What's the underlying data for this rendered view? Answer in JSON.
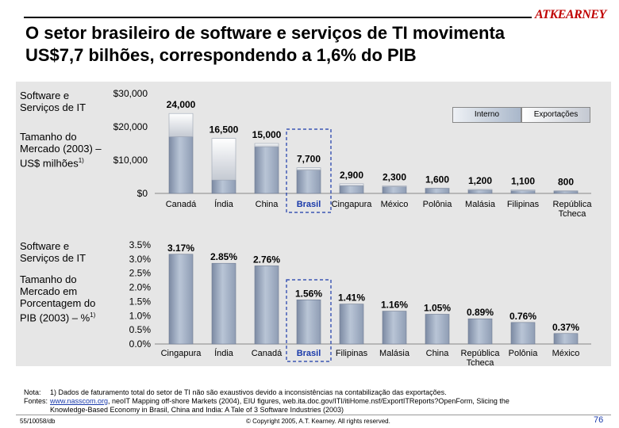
{
  "header": {
    "brand": "ATKEARNEY",
    "title_line1": "O setor brasileiro de software e serviços de TI movimenta",
    "title_line2": "US$7,7 bilhões, correspondendo a 1,6% do PIB"
  },
  "panel1": {
    "label_a": "Software e Serviços de IT",
    "label_b": "Tamanho do Mercado (2003) – US$ milhões",
    "label_b_sup": "1)",
    "legend": {
      "interno": "Interno",
      "exportacoes": "Exportações"
    }
  },
  "panel2": {
    "label_a": "Software e Serviços de IT",
    "label_b": "Tamanho do Mercado em Porcentagem do PIB (2003) – %",
    "label_b_sup": "1)"
  },
  "chart_data": [
    {
      "type": "bar",
      "stacked": true,
      "categories": [
        "Canadá",
        "Índia",
        "China",
        "Brasil",
        "Cingapura",
        "México",
        "Polônia",
        "Malásia",
        "Filipinas",
        "República Tcheca"
      ],
      "highlight": "Brasil",
      "series": [
        {
          "name": "Interno",
          "values": [
            17000,
            4000,
            14000,
            7000,
            2300,
            2000,
            1500,
            1000,
            800,
            700
          ]
        },
        {
          "name": "Exportações",
          "values": [
            7000,
            12500,
            1000,
            700,
            600,
            300,
            100,
            200,
            300,
            100
          ]
        }
      ],
      "totals": [
        24000,
        16500,
        15000,
        7700,
        2900,
        2300,
        1600,
        1200,
        1100,
        800
      ],
      "total_labels": [
        "24,000",
        "16,500",
        "15,000",
        "7,700",
        "2,900",
        "2,300",
        "1,600",
        "1,200",
        "1,100",
        "800"
      ],
      "ylim": [
        0,
        30000
      ],
      "yticks": [
        0,
        10000,
        20000,
        30000
      ],
      "ytick_labels": [
        "$0",
        "$10,000",
        "$20,000",
        "$30,000"
      ],
      "legend": "top-right"
    },
    {
      "type": "bar",
      "categories": [
        "Cingapura",
        "Índia",
        "Canadá",
        "Brasil",
        "Filipinas",
        "Malásia",
        "China",
        "República Tcheca",
        "Polônia",
        "México"
      ],
      "highlight": "Brasil",
      "values": [
        3.17,
        2.85,
        2.76,
        1.56,
        1.41,
        1.16,
        1.05,
        0.89,
        0.76,
        0.37
      ],
      "value_labels": [
        "3.17%",
        "2.85%",
        "2.76%",
        "1.56%",
        "1.41%",
        "1.16%",
        "1.05%",
        "0.89%",
        "0.76%",
        "0.37%"
      ],
      "ylim": [
        0,
        3.5
      ],
      "yticks": [
        0,
        0.5,
        1.0,
        1.5,
        2.0,
        2.5,
        3.0,
        3.5
      ],
      "ytick_labels": [
        "0.0%",
        "0.5%",
        "1.0%",
        "1.5%",
        "2.0%",
        "2.5%",
        "3.0%",
        "3.5%"
      ]
    }
  ],
  "notes": {
    "nota_label": "Nota:",
    "nota_text": "1) Dados de faturamento total do setor de TI não são exaustivos devido a inconsistências na contabilização das exportações.",
    "fontes_label": "Fontes:",
    "fontes_link": "www.nasscom.org",
    "fontes_text1": ", neoIT Mapping off-shore Markets (2004), EIU figures, web.ita.doc.gov/ITI/itiHome.nsf/ExportITReports?OpenForm, Slicing the",
    "fontes_text2": "Knowledge-Based Economy in Brasil, China and India: A Tale of 3 Software Industries (2003)"
  },
  "footer": {
    "code": "55/10058/db",
    "copyright": "© Copyright 2005, A.T. Kearney. All rights reserved.",
    "page": "76"
  },
  "colors": {
    "interno": "#b0bdd0",
    "interno_dark": "#7c8aa3",
    "exportacoes_top": "#ffffff",
    "exportacoes_bottom": "#c4c9d2",
    "highlight": "#1a3aaa"
  }
}
